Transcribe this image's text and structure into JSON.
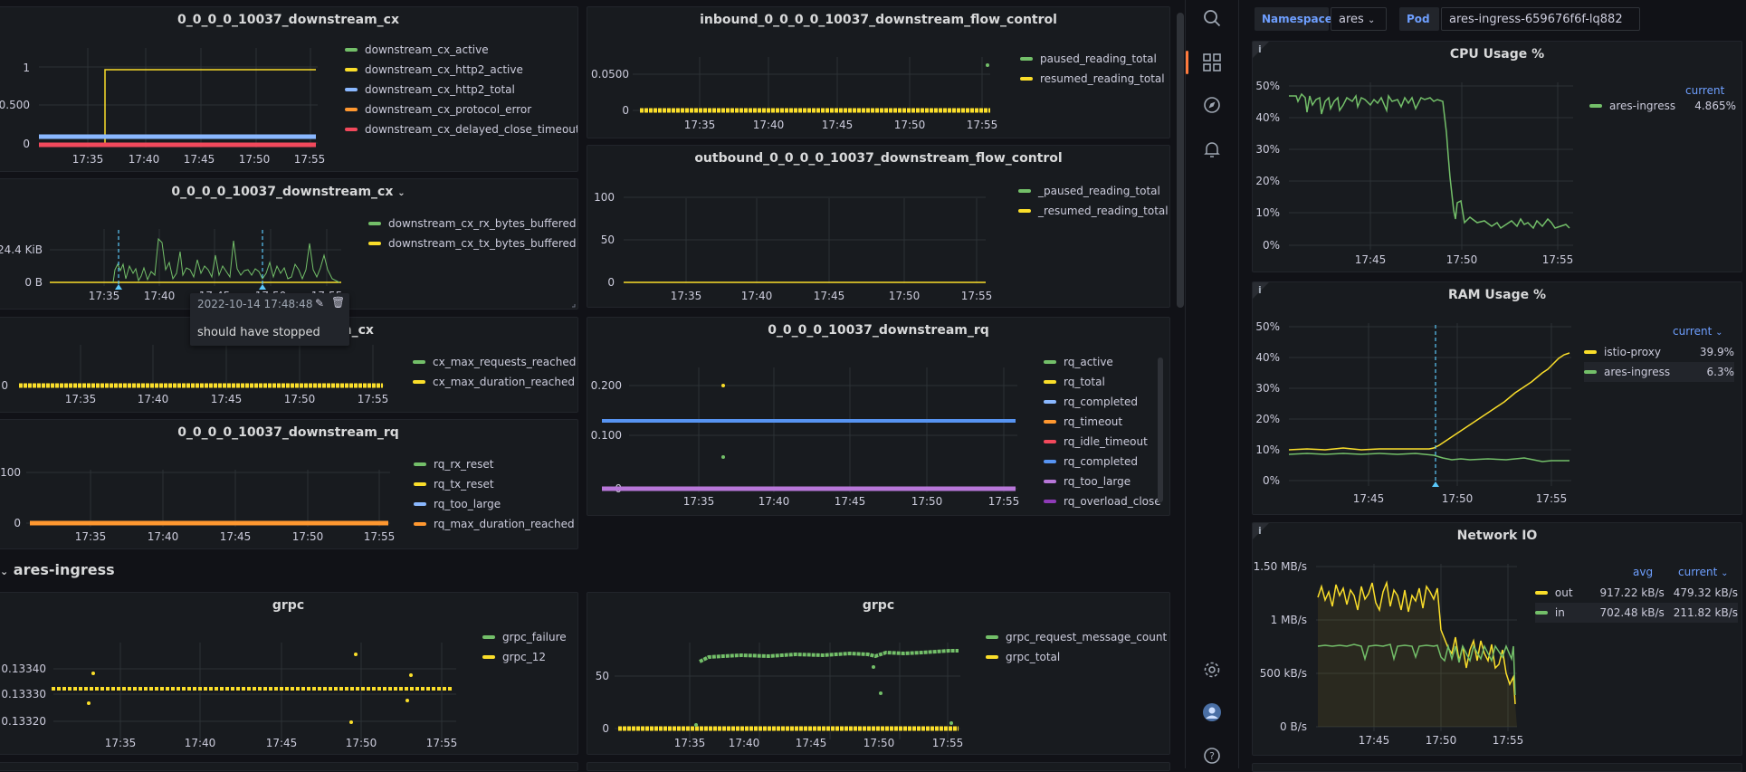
{
  "colors": {
    "green": "#73bf69",
    "yellow": "#fade2a",
    "blue": "#8ab8ff",
    "orange": "#ff9830",
    "red": "#f2495c",
    "blue2": "#5794f2",
    "purple": "#b877d9",
    "purple2": "#8f3bb8",
    "accent": "#6e9fff"
  },
  "panels": {
    "p1": {
      "title": "0_0_0_0_10037_downstream_cx",
      "yticks": [
        "1",
        "0.500",
        "0"
      ],
      "xticks": [
        "17:35",
        "17:40",
        "17:45",
        "17:50",
        "17:55"
      ],
      "legend": [
        "downstream_cx_active",
        "downstream_cx_http2_active",
        "downstream_cx_http2_total",
        "downstream_cx_protocol_error",
        "downstream_cx_delayed_close_timeout"
      ]
    },
    "p2": {
      "title": "inbound_0_0_0_0_10037_downstream_flow_control",
      "yticks": [
        "0.0500",
        "0"
      ],
      "xticks": [
        "17:35",
        "17:40",
        "17:45",
        "17:50",
        "17:55"
      ],
      "legend": [
        "paused_reading_total",
        "resumed_reading_total"
      ]
    },
    "p3": {
      "title": "0_0_0_0_10037_downstream_cx",
      "yticks": [
        "24.4 KiB",
        "0 B"
      ],
      "xticks": [
        "17:35",
        "17:40",
        "17:45",
        "17:50",
        "17:55"
      ],
      "legend": [
        "downstream_cx_rx_bytes_buffered",
        "downstream_cx_tx_bytes_buffered"
      ]
    },
    "p4": {
      "title": "outbound_0_0_0_0_10037_downstream_flow_control",
      "yticks": [
        "100",
        "50",
        "0"
      ],
      "xticks": [
        "17:35",
        "17:40",
        "17:45",
        "17:50",
        "17:55"
      ],
      "legend": [
        "_paused_reading_total",
        "_resumed_reading_total"
      ]
    },
    "p5": {
      "title": "m_cx",
      "yticks": [
        "0"
      ],
      "xticks": [
        "17:35",
        "17:40",
        "17:45",
        "17:50",
        "17:55"
      ],
      "legend": [
        "cx_max_requests_reached",
        "cx_max_duration_reached"
      ]
    },
    "p6": {
      "title": "0_0_0_0_10037_downstream_rq",
      "yticks": [
        "0.200",
        "0.100",
        "0"
      ],
      "xticks": [
        "17:35",
        "17:40",
        "17:45",
        "17:50",
        "17:55"
      ],
      "legend": [
        "rq_active",
        "rq_total",
        "rq_completed",
        "rq_timeout",
        "rq_idle_timeout",
        "rq_completed",
        "rq_too_large",
        "rq_overload_close"
      ]
    },
    "p7": {
      "title": "0_0_0_0_10037_downstream_rq",
      "yticks": [
        "100",
        "0"
      ],
      "xticks": [
        "17:35",
        "17:40",
        "17:45",
        "17:50",
        "17:55"
      ],
      "legend": [
        "rq_rx_reset",
        "rq_tx_reset",
        "rq_too_large",
        "rq_max_duration_reached"
      ]
    },
    "p8": {
      "title": "grpc",
      "yticks": [
        "0.13340",
        "0.13330",
        "0.13320"
      ],
      "xticks": [
        "17:35",
        "17:40",
        "17:45",
        "17:50",
        "17:55"
      ],
      "legend": [
        "grpc_failure",
        "grpc_12"
      ]
    },
    "p9": {
      "title": "grpc",
      "yticks": [
        "50",
        "0"
      ],
      "xticks": [
        "17:35",
        "17:40",
        "17:45",
        "17:50",
        "17:55"
      ],
      "legend": [
        "grpc_request_message_count",
        "grpc_total"
      ]
    }
  },
  "row": {
    "title": "ares-ingress"
  },
  "tooltip": {
    "time": "2022-10-14 17:48:48",
    "text": "should have stopped"
  },
  "vars": {
    "ns_label": "Namespace",
    "ns_value": "ares",
    "pod_label": "Pod",
    "pod_value": "ares-ingress-659676f6f-lq882"
  },
  "cpu": {
    "title": "CPU Usage %",
    "yticks": [
      "50%",
      "40%",
      "30%",
      "20%",
      "10%",
      "0%"
    ],
    "xticks": [
      "17:45",
      "17:50",
      "17:55"
    ],
    "legend_head": "current",
    "legend": [
      {
        "name": "ares-ingress",
        "value": "4.865%"
      }
    ]
  },
  "ram": {
    "title": "RAM Usage %",
    "yticks": [
      "50%",
      "40%",
      "30%",
      "20%",
      "10%",
      "0%"
    ],
    "xticks": [
      "17:45",
      "17:50",
      "17:55"
    ],
    "legend_head": "current",
    "legend": [
      {
        "name": "istio-proxy",
        "value": "39.9%"
      },
      {
        "name": "ares-ingress",
        "value": "6.3%"
      }
    ]
  },
  "net": {
    "title": "Network IO",
    "yticks": [
      "1.50 MB/s",
      "1 MB/s",
      "500 kB/s",
      "0 B/s"
    ],
    "xticks": [
      "17:45",
      "17:50",
      "17:55"
    ],
    "head_avg": "avg",
    "head_current": "current",
    "legend": [
      {
        "name": "out",
        "avg": "917.22 kB/s",
        "current": "479.32 kB/s"
      },
      {
        "name": "in",
        "avg": "702.48 kB/s",
        "current": "211.82 kB/s"
      }
    ]
  },
  "icons": [
    "search-icon",
    "dashboards-icon",
    "explore-icon",
    "alerting-icon",
    "settings-icon",
    "avatar",
    "help-icon"
  ]
}
